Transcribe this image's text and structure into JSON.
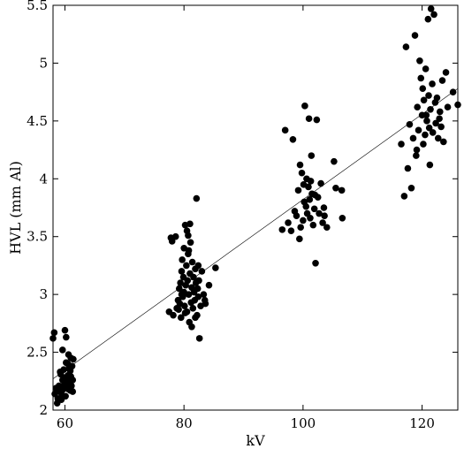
{
  "chart_data": {
    "type": "scatter",
    "title": "",
    "xlabel": "kV",
    "ylabel": "HVL (mm Al)",
    "xlim": [
      58,
      126
    ],
    "ylim": [
      2.0,
      5.5
    ],
    "xticks": [
      "60",
      "80",
      "100",
      "120"
    ],
    "yticks": [
      "2",
      "2.5",
      "3",
      "3.5",
      "4",
      "4.5",
      "5",
      "5.5"
    ],
    "grid": false,
    "legend": "none",
    "marker_color": "#000000",
    "trend_line": {
      "x": [
        58,
        126
      ],
      "y": [
        2.27,
        4.78
      ]
    },
    "series": [
      {
        "points": [
          [
            58.0,
            2.62
          ],
          [
            58.2,
            2.67
          ],
          [
            58.3,
            2.14
          ],
          [
            58.5,
            2.19
          ],
          [
            58.7,
            2.06
          ],
          [
            58.8,
            2.1
          ],
          [
            59.0,
            2.21
          ],
          [
            59.1,
            2.16
          ],
          [
            59.3,
            2.31
          ],
          [
            59.4,
            2.2
          ],
          [
            59.5,
            2.13
          ],
          [
            59.6,
            2.26
          ],
          [
            59.7,
            2.18
          ],
          [
            59.8,
            2.35
          ],
          [
            59.9,
            2.22
          ],
          [
            60.0,
            2.28
          ],
          [
            60.1,
            2.12
          ],
          [
            60.2,
            2.41
          ],
          [
            60.3,
            2.2
          ],
          [
            60.4,
            2.25
          ],
          [
            60.5,
            2.3
          ],
          [
            60.6,
            2.18
          ],
          [
            60.7,
            2.36
          ],
          [
            60.8,
            2.23
          ],
          [
            60.9,
            2.17
          ],
          [
            61.0,
            2.29
          ],
          [
            61.1,
            2.21
          ],
          [
            61.2,
            2.38
          ],
          [
            61.3,
            2.26
          ],
          [
            61.4,
            2.44
          ],
          [
            60.0,
            2.69
          ],
          [
            60.2,
            2.63
          ],
          [
            59.6,
            2.52
          ],
          [
            60.6,
            2.48
          ],
          [
            61.0,
            2.45
          ],
          [
            59.2,
            2.33
          ],
          [
            60.9,
            2.34
          ],
          [
            61.3,
            2.16
          ],
          [
            59.4,
            2.09
          ],
          [
            60.5,
            2.4
          ],
          [
            77.5,
            2.85
          ],
          [
            77.8,
            3.49
          ],
          [
            78.0,
            3.46
          ],
          [
            78.2,
            2.82
          ],
          [
            78.6,
            3.5
          ],
          [
            78.8,
            2.88
          ],
          [
            79.0,
            2.95
          ],
          [
            79.2,
            3.05
          ],
          [
            79.3,
            2.92
          ],
          [
            79.4,
            3.1
          ],
          [
            79.5,
            2.8
          ],
          [
            79.6,
            3.2
          ],
          [
            79.7,
            3.3
          ],
          [
            79.8,
            2.98
          ],
          [
            79.9,
            3.15
          ],
          [
            80.0,
            3.02
          ],
          [
            80.1,
            2.9
          ],
          [
            80.2,
            3.6
          ],
          [
            80.3,
            3.08
          ],
          [
            80.4,
            3.25
          ],
          [
            80.5,
            2.85
          ],
          [
            80.6,
            3.12
          ],
          [
            80.7,
            3.35
          ],
          [
            80.8,
            3.0
          ],
          [
            80.9,
            2.76
          ],
          [
            81.0,
            3.18
          ],
          [
            81.1,
            3.45
          ],
          [
            81.2,
            2.93
          ],
          [
            81.3,
            3.06
          ],
          [
            81.4,
            3.28
          ],
          [
            81.5,
            2.88
          ],
          [
            81.6,
            3.15
          ],
          [
            81.7,
            3.02
          ],
          [
            81.8,
            2.95
          ],
          [
            81.9,
            3.22
          ],
          [
            82.0,
            3.1
          ],
          [
            82.1,
            3.83
          ],
          [
            82.2,
            2.82
          ],
          [
            82.3,
            3.05
          ],
          [
            82.4,
            2.98
          ],
          [
            82.5,
            3.12
          ],
          [
            82.6,
            2.62
          ],
          [
            82.8,
            2.9
          ],
          [
            83.0,
            3.2
          ],
          [
            83.3,
            3.0
          ],
          [
            83.6,
            2.92
          ],
          [
            84.2,
            3.08
          ],
          [
            85.3,
            3.23
          ],
          [
            80.5,
            3.55
          ],
          [
            81.0,
            3.61
          ],
          [
            80.0,
            3.4
          ],
          [
            80.8,
            3.38
          ],
          [
            79.6,
            3.0
          ],
          [
            81.3,
            2.72
          ],
          [
            80.2,
            2.84
          ],
          [
            82.4,
            3.25
          ],
          [
            83.5,
            2.95
          ],
          [
            79.1,
            2.87
          ],
          [
            80.7,
            3.51
          ],
          [
            81.9,
            2.8
          ],
          [
            96.5,
            3.56
          ],
          [
            97.0,
            4.42
          ],
          [
            97.5,
            3.62
          ],
          [
            98.0,
            3.55
          ],
          [
            98.3,
            4.34
          ],
          [
            98.6,
            3.72
          ],
          [
            98.9,
            3.68
          ],
          [
            99.2,
            3.9
          ],
          [
            99.4,
            3.48
          ],
          [
            99.6,
            3.58
          ],
          [
            99.8,
            4.05
          ],
          [
            100.0,
            3.64
          ],
          [
            100.1,
            3.95
          ],
          [
            100.3,
            4.63
          ],
          [
            100.5,
            3.76
          ],
          [
            100.6,
            4.0
          ],
          [
            100.7,
            3.7
          ],
          [
            100.9,
            3.93
          ],
          [
            101.0,
            4.52
          ],
          [
            101.1,
            3.82
          ],
          [
            101.2,
            3.66
          ],
          [
            101.3,
            3.98
          ],
          [
            101.5,
            3.87
          ],
          [
            101.7,
            3.6
          ],
          [
            101.9,
            3.74
          ],
          [
            102.1,
            3.27
          ],
          [
            102.3,
            4.51
          ],
          [
            102.5,
            3.84
          ],
          [
            102.7,
            3.7
          ],
          [
            103.0,
            3.96
          ],
          [
            103.3,
            3.62
          ],
          [
            103.6,
            3.68
          ],
          [
            104.0,
            3.58
          ],
          [
            105.2,
            4.15
          ],
          [
            105.5,
            3.92
          ],
          [
            106.5,
            3.9
          ],
          [
            106.6,
            3.66
          ],
          [
            99.5,
            4.12
          ],
          [
            100.2,
            3.8
          ],
          [
            101.4,
            4.2
          ],
          [
            102.0,
            3.86
          ],
          [
            103.5,
            3.75
          ],
          [
            116.5,
            4.3
          ],
          [
            117.0,
            3.85
          ],
          [
            117.3,
            5.14
          ],
          [
            117.6,
            4.09
          ],
          [
            117.9,
            4.47
          ],
          [
            118.2,
            3.92
          ],
          [
            118.5,
            4.35
          ],
          [
            118.8,
            5.24
          ],
          [
            119.0,
            4.2
          ],
          [
            119.2,
            4.62
          ],
          [
            119.4,
            4.42
          ],
          [
            119.6,
            5.02
          ],
          [
            119.8,
            4.87
          ],
          [
            120.0,
            4.55
          ],
          [
            120.2,
            4.3
          ],
          [
            120.3,
            4.68
          ],
          [
            120.5,
            4.38
          ],
          [
            120.6,
            4.95
          ],
          [
            120.8,
            4.5
          ],
          [
            121.0,
            5.38
          ],
          [
            121.1,
            4.72
          ],
          [
            121.2,
            4.44
          ],
          [
            121.4,
            4.6
          ],
          [
            121.5,
            5.47
          ],
          [
            121.7,
            4.82
          ],
          [
            121.8,
            4.4
          ],
          [
            122.0,
            5.42
          ],
          [
            122.2,
            4.66
          ],
          [
            122.3,
            4.48
          ],
          [
            122.5,
            4.7
          ],
          [
            122.7,
            4.35
          ],
          [
            123.0,
            4.58
          ],
          [
            123.2,
            4.45
          ],
          [
            123.4,
            4.85
          ],
          [
            123.6,
            4.32
          ],
          [
            124.0,
            4.92
          ],
          [
            124.3,
            4.62
          ],
          [
            125.2,
            4.75
          ],
          [
            126.0,
            4.64
          ],
          [
            119.1,
            4.25
          ],
          [
            120.7,
            4.55
          ],
          [
            121.3,
            4.12
          ],
          [
            122.9,
            4.52
          ],
          [
            120.1,
            4.78
          ]
        ]
      }
    ]
  }
}
